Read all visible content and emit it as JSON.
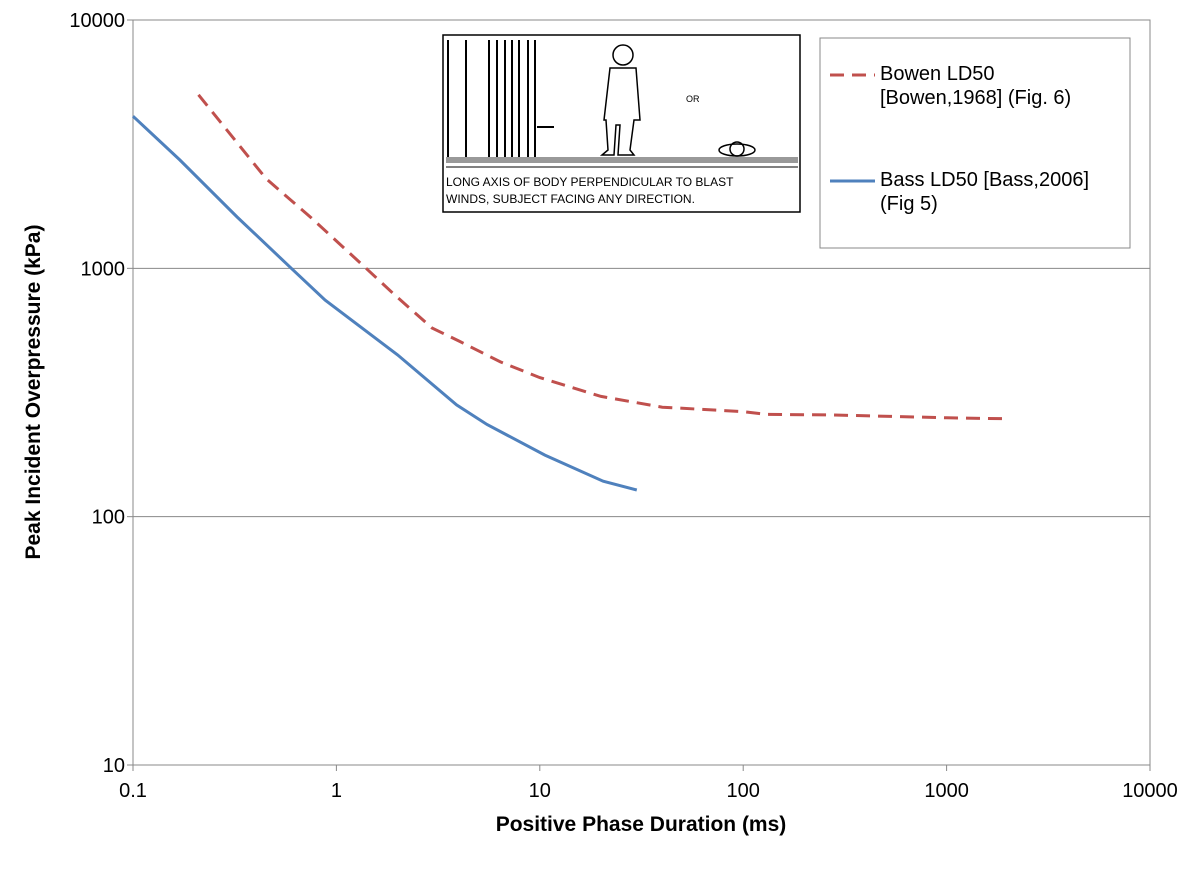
{
  "chart_data": {
    "type": "line",
    "xlabel": "Positive Phase Duration (ms)",
    "ylabel": "Peak Incident Overpressure  (kPa)",
    "xscale": "log",
    "yscale": "log",
    "xlim": [
      0.1,
      10000
    ],
    "ylim": [
      10,
      10000
    ],
    "xticks": [
      0.1,
      1,
      10,
      100,
      1000,
      10000
    ],
    "yticks": [
      10,
      100,
      1000,
      10000
    ],
    "grid": true,
    "legend": "upper right",
    "annotations": [
      "OR",
      "LONG AXIS OF BODY PERPENDICULAR TO BLAST",
      "WINDS, SUBJECT FACING ANY DIRECTION."
    ],
    "series": [
      {
        "name": "Bowen LD50 [Bowen,1968] (Fig. 6)",
        "color": "#c0504d",
        "dash": true,
        "x": [
          0.21,
          0.45,
          0.75,
          1.4,
          1.94,
          2.95,
          4,
          6.4,
          10,
          20,
          40,
          100,
          130,
          270,
          1000,
          1900
        ],
        "values": [
          5000,
          2300,
          1600,
          1000,
          780,
          575,
          510,
          420,
          363,
          305,
          276,
          265,
          258,
          257,
          250,
          248
        ]
      },
      {
        "name": "Bass LD50 [Bass,2006] (Fig 5)",
        "color": "#4f81bd",
        "dash": false,
        "x": [
          0.1,
          0.17,
          0.325,
          0.6,
          0.88,
          2,
          3.9,
          5.5,
          10.6,
          20.5,
          30
        ],
        "values": [
          4100,
          2730,
          1610,
          1000,
          745,
          448,
          282,
          235,
          177,
          139,
          128
        ]
      }
    ]
  }
}
